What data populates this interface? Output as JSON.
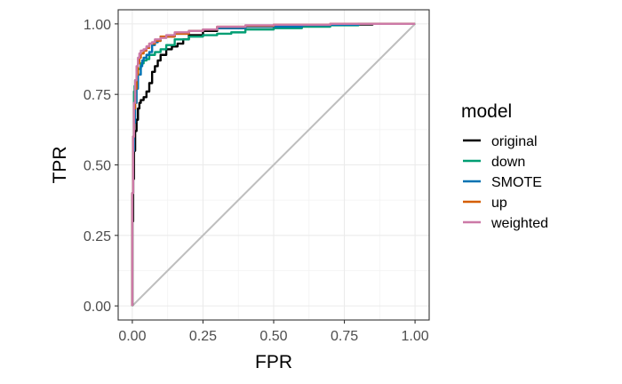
{
  "chart_data": {
    "type": "line",
    "title": "",
    "xlabel": "FPR",
    "ylabel": "TPR",
    "xlim": [
      -0.05,
      1.05
    ],
    "ylim": [
      -0.05,
      1.05
    ],
    "x_ticks": [
      0.0,
      0.25,
      0.5,
      0.75,
      1.0
    ],
    "x_tick_labels": [
      "0.00",
      "0.25",
      "0.50",
      "0.75",
      "1.00"
    ],
    "y_ticks": [
      0.0,
      0.25,
      0.5,
      0.75,
      1.0
    ],
    "y_tick_labels": [
      "0.00",
      "0.25",
      "0.50",
      "0.75",
      "1.00"
    ],
    "grid": true,
    "legend": {
      "title": "model",
      "position": "right"
    },
    "reference_line": {
      "from": [
        0,
        0
      ],
      "to": [
        1,
        1
      ],
      "color": "#BEBEBE"
    },
    "series": [
      {
        "name": "original",
        "color": "#000000",
        "points": [
          [
            0,
            0
          ],
          [
            0.003,
            0.3
          ],
          [
            0.006,
            0.45
          ],
          [
            0.01,
            0.55
          ],
          [
            0.015,
            0.62
          ],
          [
            0.02,
            0.66
          ],
          [
            0.025,
            0.7
          ],
          [
            0.03,
            0.72
          ],
          [
            0.04,
            0.73
          ],
          [
            0.05,
            0.74
          ],
          [
            0.06,
            0.76
          ],
          [
            0.07,
            0.79
          ],
          [
            0.08,
            0.83
          ],
          [
            0.09,
            0.85
          ],
          [
            0.1,
            0.87
          ],
          [
            0.12,
            0.89
          ],
          [
            0.14,
            0.91
          ],
          [
            0.16,
            0.92
          ],
          [
            0.18,
            0.93
          ],
          [
            0.2,
            0.945
          ],
          [
            0.25,
            0.96
          ],
          [
            0.3,
            0.975
          ],
          [
            0.4,
            0.985
          ],
          [
            0.5,
            0.99
          ],
          [
            0.7,
            0.995
          ],
          [
            0.85,
            0.998
          ],
          [
            1.0,
            1.0
          ]
        ]
      },
      {
        "name": "down",
        "color": "#009E73",
        "points": [
          [
            0,
            0
          ],
          [
            0.003,
            0.4
          ],
          [
            0.006,
            0.6
          ],
          [
            0.008,
            0.76
          ],
          [
            0.01,
            0.78
          ],
          [
            0.015,
            0.8
          ],
          [
            0.02,
            0.82
          ],
          [
            0.03,
            0.84
          ],
          [
            0.04,
            0.86
          ],
          [
            0.05,
            0.87
          ],
          [
            0.06,
            0.875
          ],
          [
            0.08,
            0.89
          ],
          [
            0.1,
            0.9
          ],
          [
            0.12,
            0.91
          ],
          [
            0.15,
            0.925
          ],
          [
            0.2,
            0.945
          ],
          [
            0.25,
            0.955
          ],
          [
            0.3,
            0.96
          ],
          [
            0.35,
            0.965
          ],
          [
            0.4,
            0.97
          ],
          [
            0.5,
            0.98
          ],
          [
            0.6,
            0.985
          ],
          [
            0.7,
            0.99
          ],
          [
            0.8,
            0.995
          ],
          [
            1.0,
            1.0
          ]
        ]
      },
      {
        "name": "SMOTE",
        "color": "#0072B2",
        "points": [
          [
            0,
            0
          ],
          [
            0.003,
            0.4
          ],
          [
            0.006,
            0.55
          ],
          [
            0.01,
            0.65
          ],
          [
            0.015,
            0.72
          ],
          [
            0.02,
            0.77
          ],
          [
            0.03,
            0.82
          ],
          [
            0.035,
            0.85
          ],
          [
            0.04,
            0.87
          ],
          [
            0.05,
            0.88
          ],
          [
            0.06,
            0.89
          ],
          [
            0.07,
            0.9
          ],
          [
            0.08,
            0.925
          ],
          [
            0.09,
            0.935
          ],
          [
            0.1,
            0.94
          ],
          [
            0.15,
            0.955
          ],
          [
            0.2,
            0.965
          ],
          [
            0.25,
            0.975
          ],
          [
            0.3,
            0.98
          ],
          [
            0.4,
            0.985
          ],
          [
            0.5,
            0.99
          ],
          [
            0.6,
            0.99
          ],
          [
            0.7,
            0.995
          ],
          [
            0.8,
            0.997
          ],
          [
            1.0,
            1.0
          ]
        ]
      },
      {
        "name": "up",
        "color": "#D55E00",
        "points": [
          [
            0,
            0
          ],
          [
            0.003,
            0.4
          ],
          [
            0.006,
            0.6
          ],
          [
            0.01,
            0.7
          ],
          [
            0.015,
            0.77
          ],
          [
            0.02,
            0.82
          ],
          [
            0.025,
            0.86
          ],
          [
            0.03,
            0.88
          ],
          [
            0.04,
            0.895
          ],
          [
            0.05,
            0.905
          ],
          [
            0.06,
            0.915
          ],
          [
            0.08,
            0.93
          ],
          [
            0.1,
            0.94
          ],
          [
            0.15,
            0.955
          ],
          [
            0.2,
            0.965
          ],
          [
            0.25,
            0.975
          ],
          [
            0.3,
            0.98
          ],
          [
            0.4,
            0.99
          ],
          [
            0.5,
            0.993
          ],
          [
            0.7,
            0.997
          ],
          [
            1.0,
            1.0
          ]
        ]
      },
      {
        "name": "weighted",
        "color": "#CC79A7",
        "points": [
          [
            0,
            0
          ],
          [
            0.003,
            0.4
          ],
          [
            0.006,
            0.6
          ],
          [
            0.01,
            0.72
          ],
          [
            0.015,
            0.8
          ],
          [
            0.02,
            0.85
          ],
          [
            0.025,
            0.88
          ],
          [
            0.03,
            0.895
          ],
          [
            0.04,
            0.905
          ],
          [
            0.05,
            0.91
          ],
          [
            0.06,
            0.92
          ],
          [
            0.07,
            0.93
          ],
          [
            0.08,
            0.935
          ],
          [
            0.1,
            0.945
          ],
          [
            0.12,
            0.95
          ],
          [
            0.15,
            0.96
          ],
          [
            0.2,
            0.97
          ],
          [
            0.25,
            0.975
          ],
          [
            0.3,
            0.98
          ],
          [
            0.4,
            0.99
          ],
          [
            0.5,
            0.995
          ],
          [
            0.7,
            0.997
          ],
          [
            1.0,
            1.0
          ]
        ]
      }
    ]
  }
}
